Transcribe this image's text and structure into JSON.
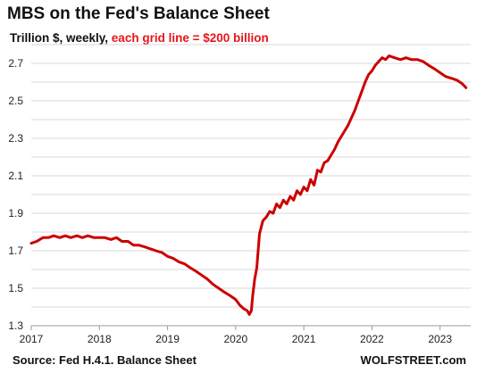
{
  "header": {
    "title": "MBS on the Fed's Balance Sheet",
    "subtitle_black": "Trillion $, weekly, ",
    "subtitle_red": "each grid line = $200 billion"
  },
  "footer": {
    "source": "Source: Fed H.4.1. Balance Sheet",
    "brand": "WOLFSTREET.com"
  },
  "colors": {
    "line": "#cc0000",
    "grid": "#d9d9d9",
    "highlight": "#e8141a"
  },
  "chart_data": {
    "type": "line",
    "title": "MBS on the Fed's Balance Sheet",
    "ylabel": "Trillion $, weekly",
    "ylim": [
      1.3,
      2.8
    ],
    "yticks": [
      1.3,
      1.5,
      1.7,
      1.9,
      2.1,
      2.3,
      2.5,
      2.7
    ],
    "ytick_labels": [
      "1.3",
      "1.5",
      "1.7",
      "1.9",
      "2.1",
      "2.3",
      "2.5",
      "2.7"
    ],
    "xlim": [
      2017.0,
      2023.45
    ],
    "xticks": [
      2017,
      2018,
      2019,
      2020,
      2021,
      2022,
      2023
    ],
    "xtick_labels": [
      "2017",
      "2018",
      "2019",
      "2020",
      "2021",
      "2022",
      "2023"
    ],
    "grid": true,
    "series": [
      {
        "x": [
          2017.0,
          2017.08,
          2017.17,
          2017.25,
          2017.33,
          2017.42,
          2017.5,
          2017.58,
          2017.67,
          2017.75,
          2017.83,
          2017.92,
          2018.0,
          2018.08,
          2018.17,
          2018.25,
          2018.33,
          2018.42,
          2018.5,
          2018.58,
          2018.67,
          2018.75,
          2018.83,
          2018.92,
          2019.0,
          2019.08,
          2019.17,
          2019.25,
          2019.33,
          2019.42,
          2019.5,
          2019.58,
          2019.67,
          2019.75,
          2019.83,
          2019.92,
          2020.0,
          2020.06,
          2020.12,
          2020.17,
          2020.2,
          2020.23,
          2020.25,
          2020.28,
          2020.31,
          2020.35,
          2020.4,
          2020.45,
          2020.5,
          2020.55,
          2020.6,
          2020.65,
          2020.7,
          2020.75,
          2020.8,
          2020.85,
          2020.9,
          2020.95,
          2021.0,
          2021.05,
          2021.1,
          2021.15,
          2021.2,
          2021.25,
          2021.3,
          2021.35,
          2021.4,
          2021.45,
          2021.5,
          2021.55,
          2021.6,
          2021.65,
          2021.7,
          2021.75,
          2021.8,
          2021.85,
          2021.9,
          2021.95,
          2022.0,
          2022.05,
          2022.1,
          2022.15,
          2022.2,
          2022.25,
          2022.33,
          2022.42,
          2022.5,
          2022.58,
          2022.67,
          2022.75,
          2022.83,
          2022.92,
          2023.0,
          2023.08,
          2023.17,
          2023.25,
          2023.33,
          2023.38
        ],
        "values": [
          1.74,
          1.75,
          1.77,
          1.77,
          1.78,
          1.77,
          1.78,
          1.77,
          1.78,
          1.77,
          1.78,
          1.77,
          1.77,
          1.77,
          1.76,
          1.77,
          1.75,
          1.75,
          1.73,
          1.73,
          1.72,
          1.71,
          1.7,
          1.69,
          1.67,
          1.66,
          1.64,
          1.63,
          1.61,
          1.59,
          1.57,
          1.55,
          1.52,
          1.5,
          1.48,
          1.46,
          1.44,
          1.41,
          1.39,
          1.38,
          1.36,
          1.38,
          1.46,
          1.55,
          1.61,
          1.79,
          1.86,
          1.88,
          1.91,
          1.9,
          1.95,
          1.93,
          1.97,
          1.95,
          1.99,
          1.97,
          2.02,
          2.0,
          2.04,
          2.02,
          2.08,
          2.05,
          2.13,
          2.12,
          2.17,
          2.18,
          2.21,
          2.24,
          2.28,
          2.31,
          2.34,
          2.37,
          2.41,
          2.45,
          2.5,
          2.55,
          2.6,
          2.64,
          2.66,
          2.69,
          2.71,
          2.73,
          2.72,
          2.74,
          2.73,
          2.72,
          2.73,
          2.72,
          2.72,
          2.71,
          2.69,
          2.67,
          2.65,
          2.63,
          2.62,
          2.61,
          2.59,
          2.57
        ]
      }
    ]
  }
}
